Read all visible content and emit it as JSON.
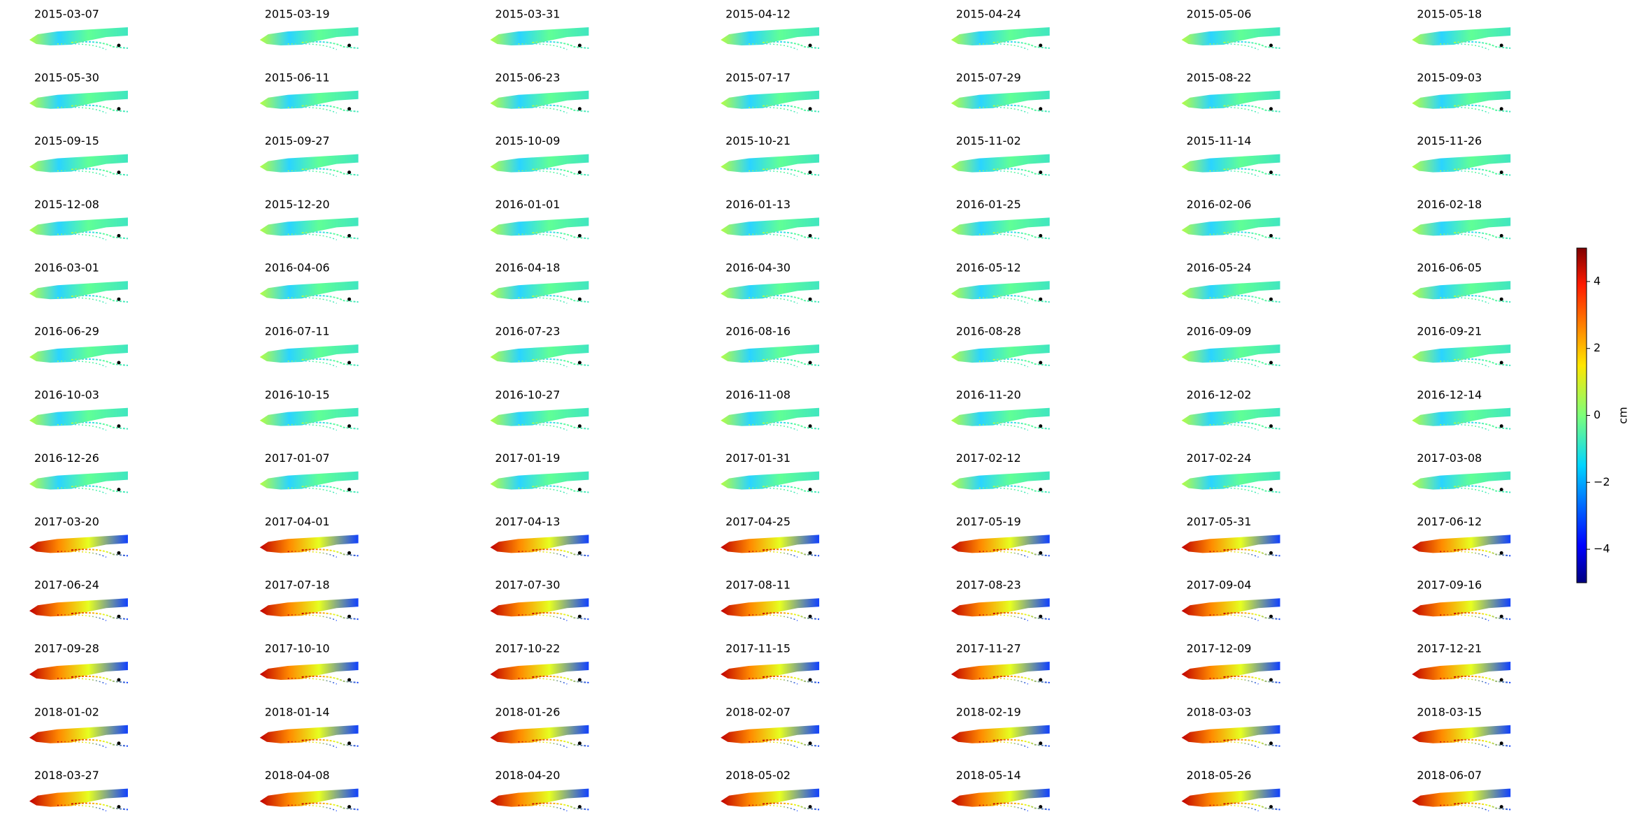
{
  "chart_data": {
    "type": "image-grid",
    "panels": [
      "2015-03-07",
      "2015-03-19",
      "2015-03-31",
      "2015-04-12",
      "2015-04-24",
      "2015-05-06",
      "2015-05-18",
      "2015-05-30",
      "2015-06-11",
      "2015-06-23",
      "2015-07-17",
      "2015-07-29",
      "2015-08-22",
      "2015-09-03",
      "2015-09-15",
      "2015-09-27",
      "2015-10-09",
      "2015-10-21",
      "2015-11-02",
      "2015-11-14",
      "2015-11-26",
      "2015-12-08",
      "2015-12-20",
      "2016-01-01",
      "2016-01-13",
      "2016-01-25",
      "2016-02-06",
      "2016-02-18",
      "2016-03-01",
      "2016-04-06",
      "2016-04-18",
      "2016-04-30",
      "2016-05-12",
      "2016-05-24",
      "2016-06-05",
      "2016-06-29",
      "2016-07-11",
      "2016-07-23",
      "2016-08-16",
      "2016-08-28",
      "2016-09-09",
      "2016-09-21",
      "2016-10-03",
      "2016-10-15",
      "2016-10-27",
      "2016-11-08",
      "2016-11-20",
      "2016-12-02",
      "2016-12-14",
      "2016-12-26",
      "2017-01-07",
      "2017-01-19",
      "2017-01-31",
      "2017-02-12",
      "2017-02-24",
      "2017-03-08",
      "2017-03-20",
      "2017-04-01",
      "2017-04-13",
      "2017-04-25",
      "2017-05-19",
      "2017-05-31",
      "2017-06-12",
      "2017-06-24",
      "2017-07-18",
      "2017-07-30",
      "2017-08-11",
      "2017-08-23",
      "2017-09-04",
      "2017-09-16",
      "2017-09-28",
      "2017-10-10",
      "2017-10-22",
      "2017-11-15",
      "2017-11-27",
      "2017-12-09",
      "2017-12-21",
      "2018-01-02",
      "2018-01-14",
      "2018-01-26",
      "2018-02-07",
      "2018-02-19",
      "2018-03-03",
      "2018-03-15",
      "2018-03-27",
      "2018-04-08",
      "2018-04-20",
      "2018-05-02",
      "2018-05-14",
      "2018-05-26",
      "2018-06-07"
    ],
    "colorbar": {
      "label": "cm",
      "colormap": "jet",
      "lim": [
        -5,
        5
      ],
      "ticks": [
        {
          "value": -4,
          "label": "−4"
        },
        {
          "value": -2,
          "label": "−2"
        },
        0,
        2,
        4
      ]
    }
  }
}
